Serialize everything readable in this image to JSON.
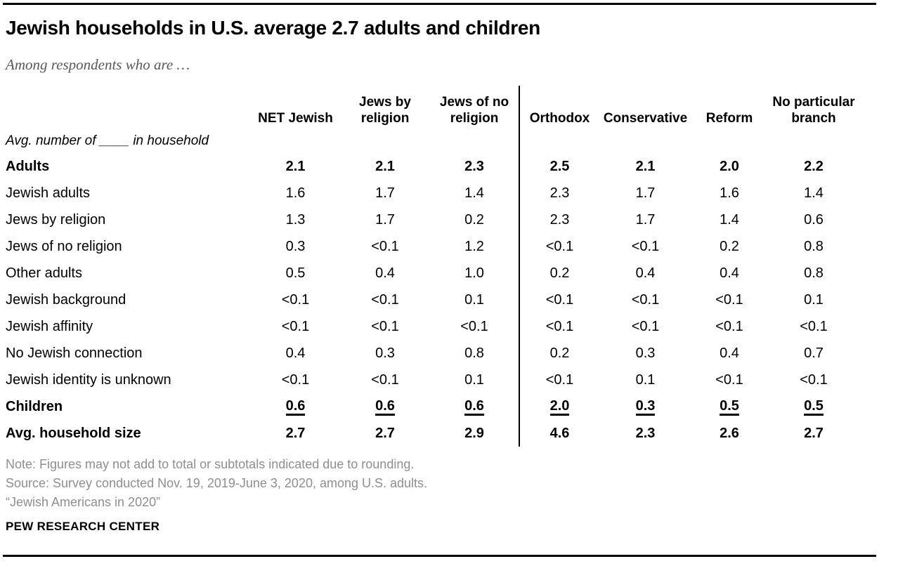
{
  "chart_data": {
    "type": "table",
    "title": "Jewish households in U.S. average 2.7 adults and children",
    "subtitle": "Among respondents who are …",
    "unit_caption": "Avg. number of ____ in household",
    "columns": [
      "NET Jewish",
      "Jews by\nreligion",
      "Jews of no\nreligion",
      "Orthodox",
      "Conservative",
      "Reform",
      "No particular\nbranch"
    ],
    "divider_before_column_index": 3,
    "rows": [
      {
        "label": "Adults",
        "indent": 0,
        "bold": true,
        "underline_values": false,
        "values": [
          "2.1",
          "2.1",
          "2.3",
          "2.5",
          "2.1",
          "2.0",
          "2.2"
        ]
      },
      {
        "label": "Jewish adults",
        "indent": 1,
        "bold": false,
        "underline_values": false,
        "values": [
          "1.6",
          "1.7",
          "1.4",
          "2.3",
          "1.7",
          "1.6",
          "1.4"
        ]
      },
      {
        "label": "Jews by religion",
        "indent": 2,
        "bold": false,
        "underline_values": false,
        "values": [
          "1.3",
          "1.7",
          "0.2",
          "2.3",
          "1.7",
          "1.4",
          "0.6"
        ]
      },
      {
        "label": "Jews of no religion",
        "indent": 2,
        "bold": false,
        "underline_values": false,
        "values": [
          "0.3",
          "<0.1",
          "1.2",
          "<0.1",
          "<0.1",
          "0.2",
          "0.8"
        ]
      },
      {
        "label": "Other adults",
        "indent": 1,
        "bold": false,
        "underline_values": false,
        "values": [
          "0.5",
          "0.4",
          "1.0",
          "0.2",
          "0.4",
          "0.4",
          "0.8"
        ]
      },
      {
        "label": "Jewish background",
        "indent": 2,
        "bold": false,
        "underline_values": false,
        "values": [
          "<0.1",
          "<0.1",
          "0.1",
          "<0.1",
          "<0.1",
          "<0.1",
          "0.1"
        ]
      },
      {
        "label": "Jewish affinity",
        "indent": 2,
        "bold": false,
        "underline_values": false,
        "values": [
          "<0.1",
          "<0.1",
          "<0.1",
          "<0.1",
          "<0.1",
          "<0.1",
          "<0.1"
        ]
      },
      {
        "label": "No Jewish connection",
        "indent": 2,
        "bold": false,
        "underline_values": false,
        "values": [
          "0.4",
          "0.3",
          "0.8",
          "0.2",
          "0.3",
          "0.4",
          "0.7"
        ]
      },
      {
        "label": "Jewish identity is unknown",
        "indent": 2,
        "bold": false,
        "underline_values": false,
        "values": [
          "<0.1",
          "<0.1",
          "0.1",
          "<0.1",
          "0.1",
          "<0.1",
          "<0.1"
        ]
      },
      {
        "label": "Children",
        "indent": 0,
        "bold": true,
        "underline_values": true,
        "values": [
          "0.6",
          "0.6",
          "0.6",
          "2.0",
          "0.3",
          "0.5",
          "0.5"
        ]
      },
      {
        "label": "Avg. household size",
        "indent": 0,
        "bold": true,
        "underline_values": false,
        "values": [
          "2.7",
          "2.7",
          "2.9",
          "4.6",
          "2.3",
          "2.6",
          "2.7"
        ]
      }
    ]
  },
  "footer": {
    "note": "Note: Figures may not add to total or subtotals indicated due to rounding.",
    "source": "Source: Survey conducted Nov. 19, 2019-June 3, 2020, among U.S. adults.",
    "report": "“Jewish Americans in 2020”",
    "brand": "PEW RESEARCH CENTER"
  },
  "colors": {
    "text": "#000000",
    "subtitle_gray": "#58585a",
    "note_gray": "#8e8e8e",
    "rule": "#000000",
    "divider": "#000000",
    "background": "#ffffff"
  }
}
